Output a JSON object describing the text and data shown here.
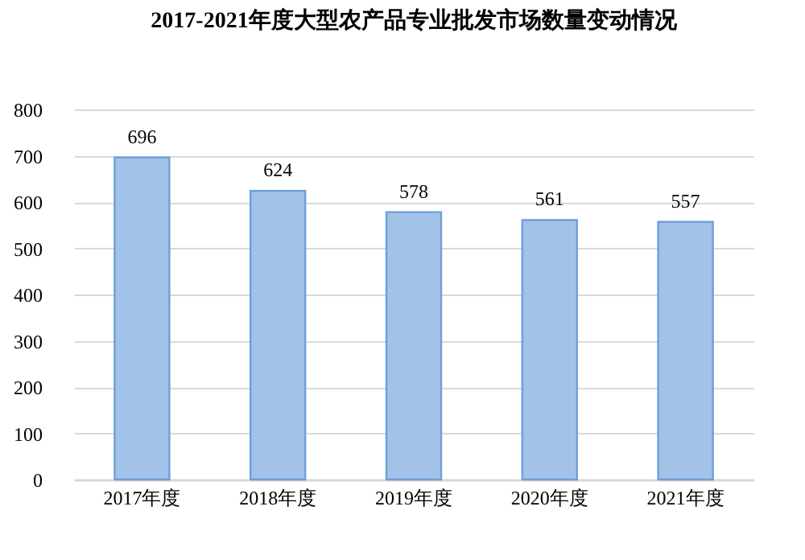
{
  "chart_data": {
    "type": "bar",
    "title": "2017-2021年度大型农产品专业批发市场数量变动情况",
    "categories": [
      "2017年度",
      "2018年度",
      "2019年度",
      "2020年度",
      "2021年度"
    ],
    "values": [
      696,
      624,
      578,
      561,
      557
    ],
    "color": "#a3c2e8",
    "ylim": [
      0,
      800
    ],
    "yticks": [
      0,
      100,
      200,
      300,
      400,
      500,
      600,
      700,
      800
    ],
    "grid": "y",
    "data_labels": true
  }
}
